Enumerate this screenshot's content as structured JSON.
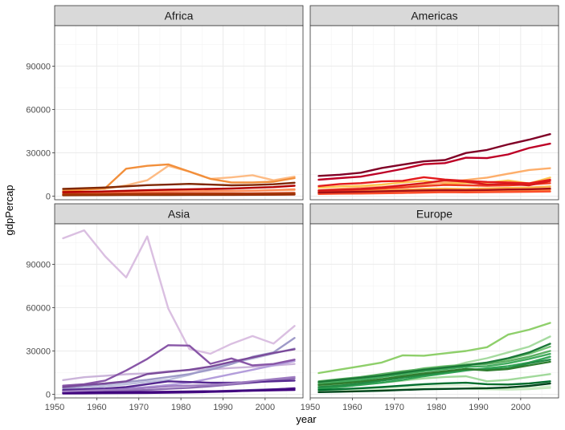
{
  "chart_data": {
    "type": "line",
    "xlabel": "year",
    "ylabel": "gdpPercap",
    "x": [
      1952,
      1957,
      1962,
      1967,
      1972,
      1977,
      1982,
      1987,
      1992,
      1997,
      2002,
      2007
    ],
    "xlim": [
      1950,
      2009
    ],
    "ylim": [
      -2500,
      118000
    ],
    "x_ticks": [
      1950,
      1960,
      1970,
      1980,
      1990,
      2000
    ],
    "y_ticks": [
      0,
      30000,
      60000,
      90000
    ],
    "x_tick_labels": [
      "1950",
      "1960",
      "1970",
      "1980",
      "1990",
      "2000"
    ],
    "y_tick_labels": [
      "0",
      "30000",
      "60000",
      "90000"
    ],
    "grid": true,
    "legend": "none",
    "panels": [
      {
        "title": "Africa",
        "series": [
          {
            "color": "#fdd49e",
            "values": [
              1000,
              1100,
              1200,
              1300,
              1400,
              1450,
              1500,
              1500,
              1500,
              1600,
              1700,
              1800
            ]
          },
          {
            "color": "#fdbb84",
            "values": [
              2500,
              2700,
              3000,
              3200,
              3300,
              3500,
              3600,
              3500,
              3600,
              3800,
              4000,
              4200
            ]
          },
          {
            "color": "#fdbb84",
            "values": [
              4000,
              4500,
              5000,
              7500,
              11000,
              21000,
              17000,
              12000,
              13000,
              14500,
              11000,
              13500
            ]
          },
          {
            "color": "#fc8d59",
            "values": [
              2000,
              2300,
              2600,
              2900,
              3100,
              3600,
              3800,
              3600,
              3500,
              3800,
              4200,
              4800
            ]
          },
          {
            "color": "#f28f3b",
            "values": [
              3500,
              4500,
              5500,
              19000,
              21000,
              22000,
              17000,
              12000,
              9500,
              9500,
              10000,
              12500
            ]
          },
          {
            "color": "#e34a33",
            "values": [
              1500,
              1600,
              1700,
              1900,
              2000,
              2100,
              2100,
              2000,
              1900,
              2000,
              2100,
              2300
            ]
          },
          {
            "color": "#d7301f",
            "values": [
              800,
              850,
              900,
              950,
              1000,
              1050,
              1000,
              950,
              900,
              950,
              1000,
              1100
            ]
          },
          {
            "color": "#b30000",
            "values": [
              2800,
              3000,
              3300,
              3700,
              4100,
              4500,
              4800,
              5000,
              5300,
              5800,
              6300,
              7200
            ]
          },
          {
            "color": "#7f2704",
            "values": [
              5000,
              5500,
              6000,
              6800,
              7600,
              8000,
              8500,
              8000,
              7500,
              7700,
              8200,
              9300
            ]
          },
          {
            "color": "#8c2d04",
            "values": [
              600,
              650,
              700,
              750,
              800,
              850,
              900,
              900,
              950,
              1000,
              1100,
              1200
            ]
          },
          {
            "color": "#a63603",
            "values": [
              1200,
              1300,
              1350,
              1400,
              1500,
              1550,
              1600,
              1600,
              1650,
              1700,
              1800,
              2000
            ]
          }
        ]
      },
      {
        "title": "Americas",
        "series": [
          {
            "color": "#fee391",
            "values": [
              2500,
              2800,
              3100,
              3500,
              4000,
              4500,
              4700,
              4600,
              4800,
              5200,
              5500,
              6200
            ]
          },
          {
            "color": "#fec44f",
            "values": [
              5900,
              6800,
              7100,
              8000,
              9500,
              10500,
              8900,
              9100,
              9300,
              10900,
              8800,
              12800
            ]
          },
          {
            "color": "#fdae6b",
            "values": [
              4000,
              5100,
              5800,
              6400,
              7200,
              8200,
              9600,
              11200,
              12800,
              15500,
              18100,
              19300
            ]
          },
          {
            "color": "#feb24c",
            "values": [
              3000,
              3300,
              3600,
              4000,
              4500,
              5000,
              5200,
              5000,
              5400,
              5800,
              6000,
              6800
            ]
          },
          {
            "color": "#fd8d3c",
            "values": [
              2000,
              2300,
              2500,
              2700,
              3100,
              3500,
              3700,
              3400,
              3600,
              3900,
              4100,
              4500
            ]
          },
          {
            "color": "#fc4e2a",
            "values": [
              1500,
              1700,
              1800,
              2000,
              2200,
              2500,
              2700,
              2600,
              2700,
              2900,
              3000,
              3200
            ]
          },
          {
            "color": "#f03b20",
            "values": [
              3500,
              4000,
              4500,
              5200,
              6000,
              7000,
              7800,
              7500,
              7200,
              7500,
              8000,
              9000
            ]
          },
          {
            "color": "#e31a1c",
            "values": [
              7000,
              8400,
              9000,
              10200,
              10600,
              13100,
              11500,
              10600,
              9800,
              9500,
              8900,
              11400
            ]
          },
          {
            "color": "#d7191c",
            "values": [
              4000,
              4500,
              5000,
              6000,
              7500,
              9000,
              11000,
              10000,
              8000,
              8500,
              7500,
              10500
            ]
          },
          {
            "color": "#bd0026",
            "values": [
              11400,
              12500,
              13500,
              16100,
              18900,
              22100,
              22900,
              26600,
              26300,
              28900,
              33300,
              36300
            ]
          },
          {
            "color": "#800026",
            "values": [
              14000,
              14800,
              16200,
              19500,
              21800,
              24100,
              25000,
              29900,
              32000,
              35800,
              39100,
              42900
            ]
          },
          {
            "color": "#a50f15",
            "values": [
              2500,
              2800,
              3000,
              3400,
              3700,
              4000,
              4200,
              4100,
              4300,
              4600,
              4800,
              5200
            ]
          }
        ]
      },
      {
        "title": "Asia",
        "series": [
          {
            "color": "#dabfe1",
            "values": [
              108000,
              113500,
              95500,
              80900,
              109300,
              59300,
              31300,
              28100,
              34900,
              40300,
              35100,
              47300
            ]
          },
          {
            "color": "#cbb4da",
            "values": [
              9800,
              11800,
              12800,
              13900,
              14500,
              16000,
              16700,
              17300,
              18200,
              19000,
              20000,
              21000
            ]
          },
          {
            "color": "#bcbddc",
            "values": [
              3000,
              4000,
              5500,
              7000,
              8500,
              10000,
              13500,
              18200,
              21700,
              24700,
              28200,
              31700
            ]
          },
          {
            "color": "#b39ddb",
            "values": [
              2300,
              2600,
              3200,
              4000,
              5000,
              6500,
              8000,
              11000,
              14000,
              17000,
              20000,
              23000
            ]
          },
          {
            "color": "#9e9ac8",
            "values": [
              4000,
              5500,
              7000,
              8500,
              10000,
              12000,
              14000,
              17000,
              21000,
              26000,
              29000,
              39000
            ]
          },
          {
            "color": "#8c6bb1",
            "values": [
              1500,
              1800,
              2200,
              2600,
              3000,
              3800,
              4500,
              5500,
              6800,
              8000,
              9500,
              11000
            ]
          },
          {
            "color": "#8856a7",
            "values": [
              6000,
              7000,
              9500,
              16500,
              24500,
              34000,
              33700,
              21100,
              24800,
              20000,
              21000,
              24000
            ]
          },
          {
            "color": "#7a4a9a",
            "values": [
              5000,
              6500,
              7500,
              9000,
              14000,
              15500,
              17000,
              19200,
              22500,
              25500,
              28600,
              31200
            ]
          },
          {
            "color": "#6a51a3",
            "values": [
              800,
              900,
              1000,
              1100,
              1300,
              1500,
              1700,
              2000,
              2500,
              3000,
              3500,
              4000
            ]
          },
          {
            "color": "#54278f",
            "values": [
              3000,
              3500,
              4000,
              5000,
              7000,
              9000,
              8500,
              8000,
              8000,
              8500,
              9000,
              9500
            ]
          },
          {
            "color": "#4a1486",
            "values": [
              500,
              600,
              700,
              800,
              900,
              1100,
              1300,
              1600,
              2000,
              2600,
              3300,
              4200
            ]
          },
          {
            "color": "#3f007d",
            "values": [
              1000,
              1200,
              1400,
              1500,
              1600,
              1800,
              2000,
              2100,
              2300,
              2500,
              2700,
              3000
            ]
          },
          {
            "color": "#9e7cc1",
            "values": [
              2000,
              2500,
              3000,
              3500,
              4500,
              5500,
              6000,
              6500,
              7500,
              9000,
              10500,
              12000
            ]
          }
        ]
      },
      {
        "title": "Europe",
        "series": [
          {
            "color": "#d9f0d3",
            "values": [
              3000,
              3500,
              4000,
              4500,
              5000,
              5500,
              6000,
              6000,
              4500,
              4000,
              4500,
              5500
            ]
          },
          {
            "color": "#c7e9c0",
            "values": [
              2000,
              2300,
              2600,
              3000,
              3400,
              3800,
              4000,
              4000,
              3500,
              3200,
              3600,
              4500
            ]
          },
          {
            "color": "#a6dba0",
            "values": [
              6000,
              7000,
              8000,
              10000,
              13000,
              16000,
              18000,
              22000,
              25000,
              29000,
              33000,
              40000
            ]
          },
          {
            "color": "#a1d99b",
            "values": [
              5000,
              6000,
              7000,
              8000,
              9500,
              11000,
              12000,
              12500,
              9000,
              10000,
              12000,
              14000
            ]
          },
          {
            "color": "#8ecf6a",
            "values": [
              14700,
              17100,
              19500,
              22000,
              27000,
              26700,
              28400,
              30000,
              32600,
              41300,
              44700,
              49400
            ]
          },
          {
            "color": "#74c476",
            "values": [
              8000,
              9500,
              11000,
              13000,
              15500,
              18000,
              19500,
              20500,
              22000,
              24500,
              28000,
              33000
            ]
          },
          {
            "color": "#5aae61",
            "values": [
              9000,
              10500,
              12000,
              14000,
              16000,
              17500,
              19000,
              20500,
              21000,
              23000,
              26000,
              30000
            ]
          },
          {
            "color": "#41ab5d",
            "values": [
              7000,
              8500,
              10000,
              12000,
              14000,
              16000,
              17500,
              19000,
              19500,
              21500,
              24500,
              28000
            ]
          },
          {
            "color": "#31a354",
            "values": [
              4000,
              5000,
              6500,
              8000,
              10000,
              12500,
              14500,
              16500,
              18000,
              19500,
              22000,
              26000
            ]
          },
          {
            "color": "#238b45",
            "values": [
              5000,
              6000,
              7500,
              9500,
              11500,
              13500,
              15500,
              17500,
              17000,
              18000,
              21500,
              24000
            ]
          },
          {
            "color": "#1b7837",
            "values": [
              8500,
              10000,
              11500,
              13000,
              15000,
              17000,
              18500,
              20000,
              22000,
              25000,
              29000,
              35000
            ]
          },
          {
            "color": "#006d2c",
            "values": [
              3000,
              3500,
              4200,
              5000,
              6000,
              7000,
              7600,
              8000,
              7000,
              6800,
              7500,
              9000
            ]
          },
          {
            "color": "#00441b",
            "values": [
              1500,
              1800,
              2100,
              2500,
              3000,
              3500,
              3700,
              4000,
              4200,
              4800,
              5800,
              7500
            ]
          },
          {
            "color": "#2f7d2f",
            "values": [
              6500,
              7500,
              8800,
              10500,
              12500,
              14500,
              16000,
              17500,
              16500,
              17500,
              20000,
              22500
            ]
          }
        ]
      }
    ]
  }
}
